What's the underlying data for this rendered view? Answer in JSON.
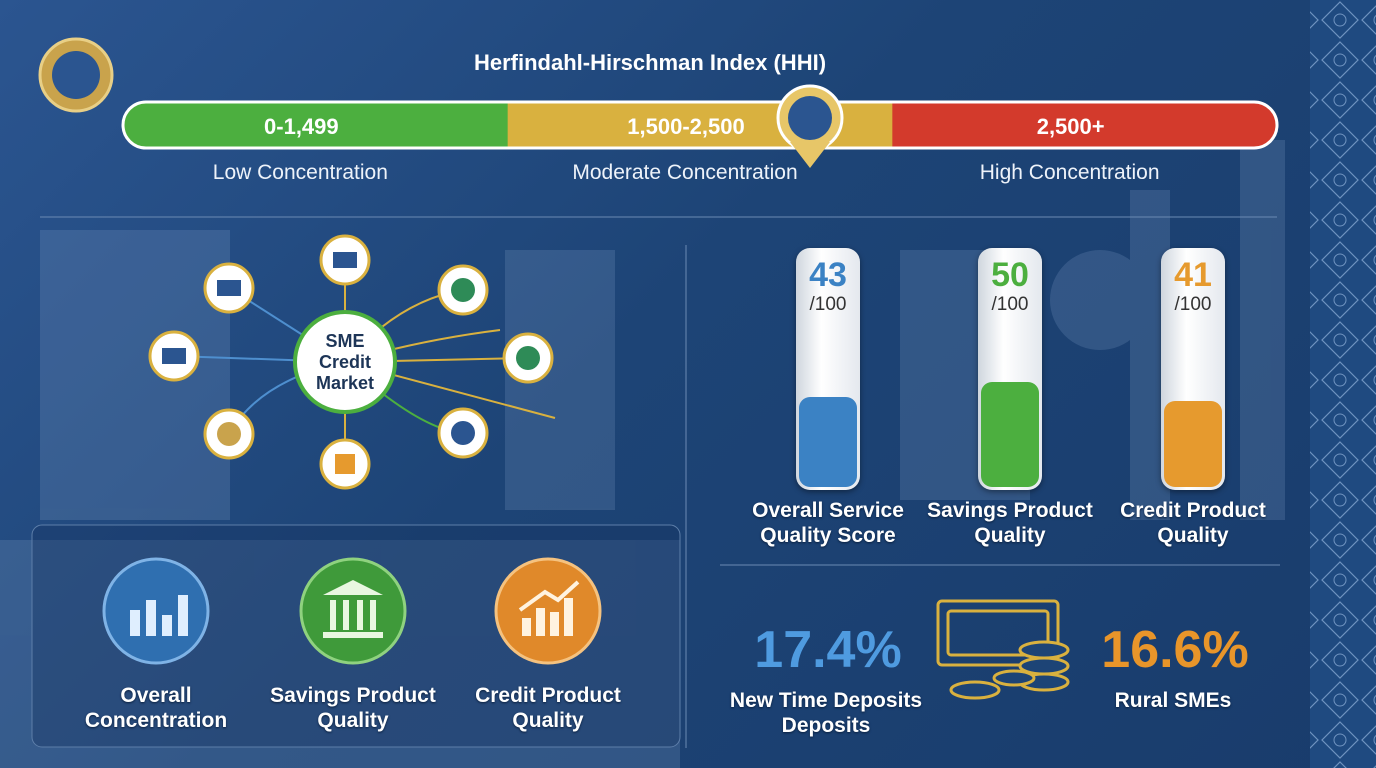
{
  "hhi": {
    "title": "Herfindahl-Hirschman Index (HHI)",
    "bands": [
      {
        "range": "0-1,499",
        "label": "Low Concentration",
        "color": "#4caf3f"
      },
      {
        "range": "1,500-2,500",
        "label": "Moderate Concentration",
        "color": "#d9b13f"
      },
      {
        "range": "2,500+",
        "label": "High Concentration",
        "color": "#d33a2c"
      }
    ]
  },
  "network": {
    "center": "SME Credit Market"
  },
  "scores": [
    {
      "value": 43,
      "max": {
        "value": 100,
        "label": "/100"
      },
      "label": "Overall Service Quality Score",
      "color": "#3b82c4"
    },
    {
      "value": 50,
      "max": {
        "value": 100,
        "label": "/100"
      },
      "label": "Savings Product Quality",
      "color": "#4caf3f"
    },
    {
      "value": 41,
      "max": {
        "value": 100,
        "label": "/100"
      },
      "label": "Credit Product Quality",
      "color": "#e69a2e"
    }
  ],
  "features": [
    {
      "label": "Overall Concentration"
    },
    {
      "label": "Savings Product Quality"
    },
    {
      "label": "Credit Product Quality"
    }
  ],
  "stats": [
    {
      "value": "17.4%",
      "label": "New Time Deposits Deposits",
      "color": "#4f9be0"
    },
    {
      "value": "16.6%",
      "label": "Rural SMEs",
      "color": "#e8952a"
    }
  ]
}
